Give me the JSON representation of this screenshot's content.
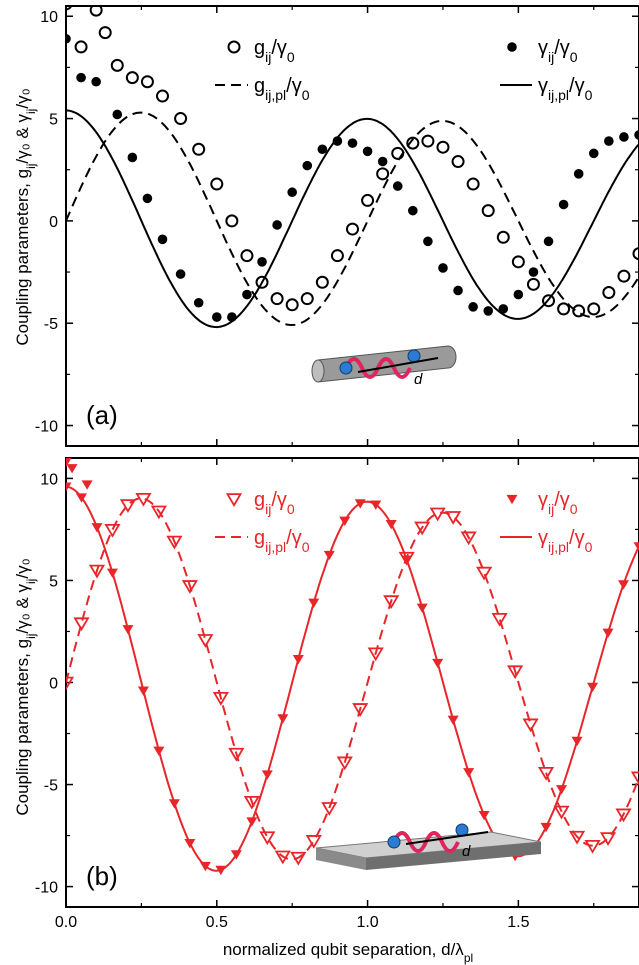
{
  "chart_data": [
    {
      "type": "line",
      "panel_label": "(a)",
      "ylabel": "Coupling parameters, g_ij/γ₀ & γ_ij/γ₀",
      "xlabel": "",
      "xlim": [
        0,
        1.9
      ],
      "ylim": [
        -11,
        10.5
      ],
      "xticks": [
        0,
        0.5,
        1,
        1.5
      ],
      "xtick_labels": [
        "0.0",
        "0.5",
        "1.0",
        "1.5"
      ],
      "yticks": [
        -10,
        -5,
        0,
        5,
        10
      ],
      "ytick_labels": [
        "-10",
        "-5",
        "0",
        "5",
        "10"
      ],
      "color": "#000000",
      "inset_label": "d",
      "series": [
        {
          "name": "gij/γ0",
          "style": "open-circle",
          "x": [
            0.0,
            0.05,
            0.1,
            0.13,
            0.17,
            0.22,
            0.27,
            0.32,
            0.38,
            0.44,
            0.5,
            0.55,
            0.6,
            0.65,
            0.7,
            0.75,
            0.8,
            0.85,
            0.9,
            0.95,
            1.0,
            1.05,
            1.1,
            1.15,
            1.2,
            1.25,
            1.3,
            1.35,
            1.4,
            1.45,
            1.5,
            1.55,
            1.6,
            1.65,
            1.7,
            1.75,
            1.8,
            1.85,
            1.9
          ],
          "y": [
            10.6,
            8.5,
            10.3,
            9.2,
            7.6,
            7.0,
            6.8,
            6.1,
            5.0,
            3.5,
            1.8,
            0.0,
            -1.7,
            -3.0,
            -3.8,
            -4.1,
            -3.8,
            -3.0,
            -1.7,
            -0.4,
            1.0,
            2.3,
            3.3,
            3.8,
            3.9,
            3.6,
            2.9,
            1.8,
            0.5,
            -0.8,
            -2.0,
            -3.1,
            -3.9,
            -4.3,
            -4.4,
            -4.3,
            -3.5,
            -2.7,
            -1.6
          ]
        },
        {
          "name": "γij/γ0",
          "style": "filled-circle",
          "x": [
            0.0,
            0.05,
            0.1,
            0.17,
            0.22,
            0.27,
            0.32,
            0.38,
            0.44,
            0.5,
            0.55,
            0.6,
            0.65,
            0.7,
            0.75,
            0.8,
            0.85,
            0.9,
            0.95,
            1.0,
            1.05,
            1.1,
            1.15,
            1.2,
            1.25,
            1.3,
            1.35,
            1.4,
            1.45,
            1.5,
            1.55,
            1.6,
            1.65,
            1.7,
            1.75,
            1.8,
            1.85,
            1.9
          ],
          "y": [
            8.9,
            7.0,
            6.8,
            5.2,
            3.1,
            1.1,
            -0.9,
            -2.6,
            -4.0,
            -4.7,
            -4.7,
            -3.6,
            -2.0,
            -0.2,
            1.4,
            2.7,
            3.5,
            3.9,
            3.8,
            3.4,
            2.9,
            1.7,
            0.5,
            -1.0,
            -2.3,
            -3.4,
            -4.2,
            -4.4,
            -4.3,
            -3.6,
            -2.5,
            -1.0,
            0.8,
            2.3,
            3.3,
            3.9,
            4.1,
            4.2
          ]
        },
        {
          "name": "gij,pl/γ0",
          "style": "dashed-line",
          "amplitude": 5.4,
          "decay": 0.08,
          "x_range": [
            0,
            1.9
          ],
          "function": "A*exp(-k*x)*sin(2*pi*x)"
        },
        {
          "name": "γij,pl/γ0",
          "style": "solid-line",
          "amplitude": 5.4,
          "decay": 0.08,
          "x_range": [
            0,
            1.9
          ],
          "function": "A*exp(-k*x)*cos(2*pi*x)"
        }
      ]
    },
    {
      "type": "line",
      "panel_label": "(b)",
      "ylabel": "Coupling parameters, g_ij/γ₀ & γ_ij/γ₀",
      "xlabel": "normalized qubit separation, d/λ_pl",
      "xlim": [
        0,
        1.9
      ],
      "ylim": [
        -11,
        11
      ],
      "xticks": [
        0,
        0.5,
        1,
        1.5
      ],
      "xtick_labels": [
        "0.0",
        "0.5",
        "1.0",
        "1.5"
      ],
      "yticks": [
        -10,
        -5,
        0,
        5,
        10
      ],
      "ytick_labels": [
        "-10",
        "-5",
        "0",
        "5",
        "10"
      ],
      "color": "#e8262a",
      "inset_label": "d",
      "series": [
        {
          "name": "gij/γ0",
          "style": "open-triangle-down",
          "curve": "sine",
          "amplitude": 9.2,
          "decay": 0.08,
          "marker_x_range": [
            0,
            1.9
          ],
          "marker_count": 38
        },
        {
          "name": "γij/γ0",
          "style": "filled-triangle-down",
          "curve": "cosine",
          "amplitude": 9.6,
          "decay": 0.08,
          "marker_x_range": [
            0,
            1.9
          ],
          "marker_count": 38,
          "extra_points": [
            {
              "x": 0.0,
              "y": 10.8
            },
            {
              "x": 0.02,
              "y": 10.5
            },
            {
              "x": 0.07,
              "y": 9.7
            }
          ]
        },
        {
          "name": "gij,pl/γ0",
          "style": "dashed-line",
          "amplitude": 9.2,
          "decay": 0.08,
          "x_range": [
            0,
            1.9
          ],
          "function": "A*exp(-k*x)*sin(2*pi*x)"
        },
        {
          "name": "γij,pl/γ0",
          "style": "solid-line",
          "amplitude": 9.6,
          "decay": 0.08,
          "x_range": [
            0,
            1.9
          ],
          "function": "A*exp(-k*x)*cos(2*pi*x)"
        }
      ]
    }
  ]
}
